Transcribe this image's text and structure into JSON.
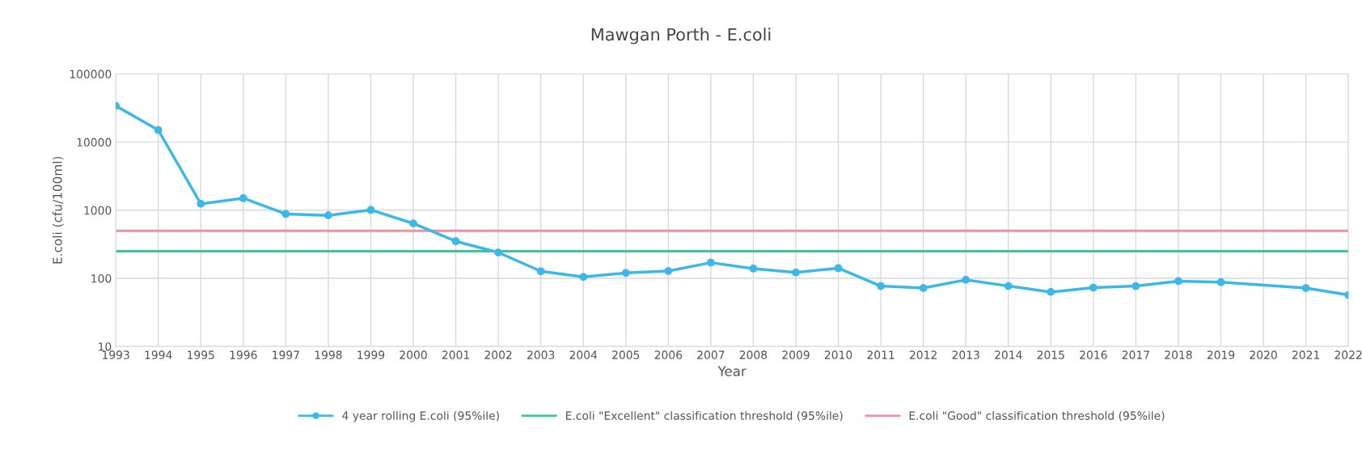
{
  "chart_data": {
    "type": "line",
    "title": "Mawgan Porth - E.coli",
    "xlabel": "Year",
    "ylabel": "E.coli (cfu/100ml)",
    "categories": [
      "1993",
      "1994",
      "1995",
      "1996",
      "1997",
      "1998",
      "1999",
      "2000",
      "2001",
      "2002",
      "2003",
      "2004",
      "2005",
      "2006",
      "2007",
      "2008",
      "2009",
      "2010",
      "2011",
      "2012",
      "2013",
      "2014",
      "2015",
      "2016",
      "2017",
      "2018",
      "2019",
      "2020",
      "2021",
      "2022"
    ],
    "series": [
      {
        "name": "4 year rolling E.coli (95%ile)",
        "color": "#3cb8e6",
        "values": [
          34000,
          15000,
          1240,
          1500,
          880,
          840,
          1010,
          640,
          350,
          240,
          127,
          105,
          120,
          128,
          170,
          139,
          122,
          141,
          77,
          72,
          95,
          77,
          63,
          73,
          77,
          91,
          88,
          null,
          72,
          57
        ]
      }
    ],
    "ref_lines": [
      {
        "axis": "y",
        "value": 250,
        "label": "E.coli \"Excellent\" classification threshold (95%ile)",
        "color": "#3ec49c"
      },
      {
        "axis": "y",
        "value": 500,
        "label": "E.coli \"Good\" classification threshold (95%ile)",
        "color": "#f0919e"
      }
    ],
    "log": "y",
    "ylim": [
      10,
      100000
    ],
    "yticks": [
      10,
      100,
      1000,
      10000,
      100000
    ],
    "grid": true,
    "legend": "bottom",
    "marker": "circle",
    "line_style": "solid"
  }
}
